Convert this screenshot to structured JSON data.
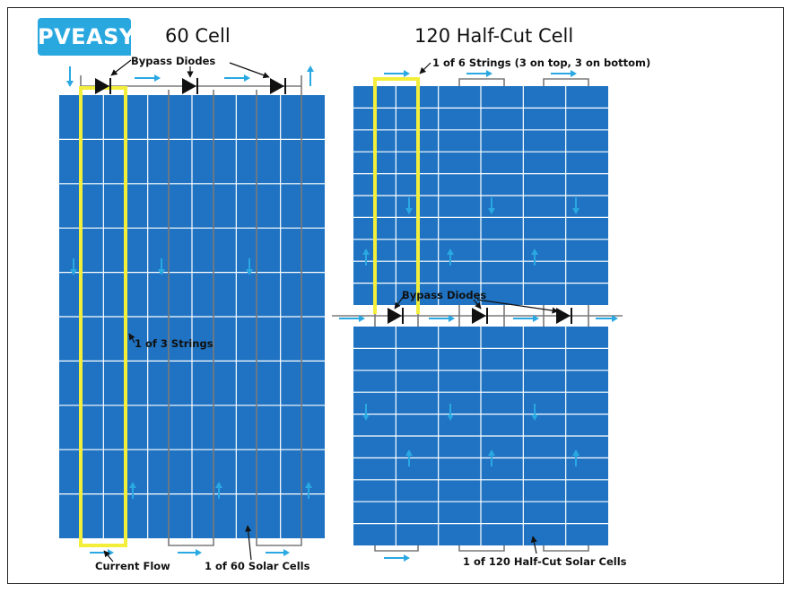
{
  "brand": {
    "logo_text": "PVEASY.",
    "accent_color": "#29a8e0"
  },
  "panels": {
    "left_title": "60 Cell",
    "right_title": "120 Half-Cut Cell"
  },
  "labels": {
    "bypass_diodes_top": "Bypass Diodes",
    "one_of_6_strings": "1 of 6 Strings (3 on top, 3 on bottom)",
    "one_of_3_strings": "1 of 3 Strings",
    "bypass_diodes_mid": "Bypass Diodes",
    "current_flow": "Current Flow",
    "one_of_60_cells": "1 of 60 Solar Cells",
    "one_of_120_cells": "1 of 120 Half-Cut Solar Cells"
  },
  "colors": {
    "cell_blue": "#1f73c2",
    "grid_line": "#ffffff",
    "string_highlight": "#f3ee3a",
    "flow_arrow": "#2aa8e2",
    "wire": "#7a7a7a"
  }
}
